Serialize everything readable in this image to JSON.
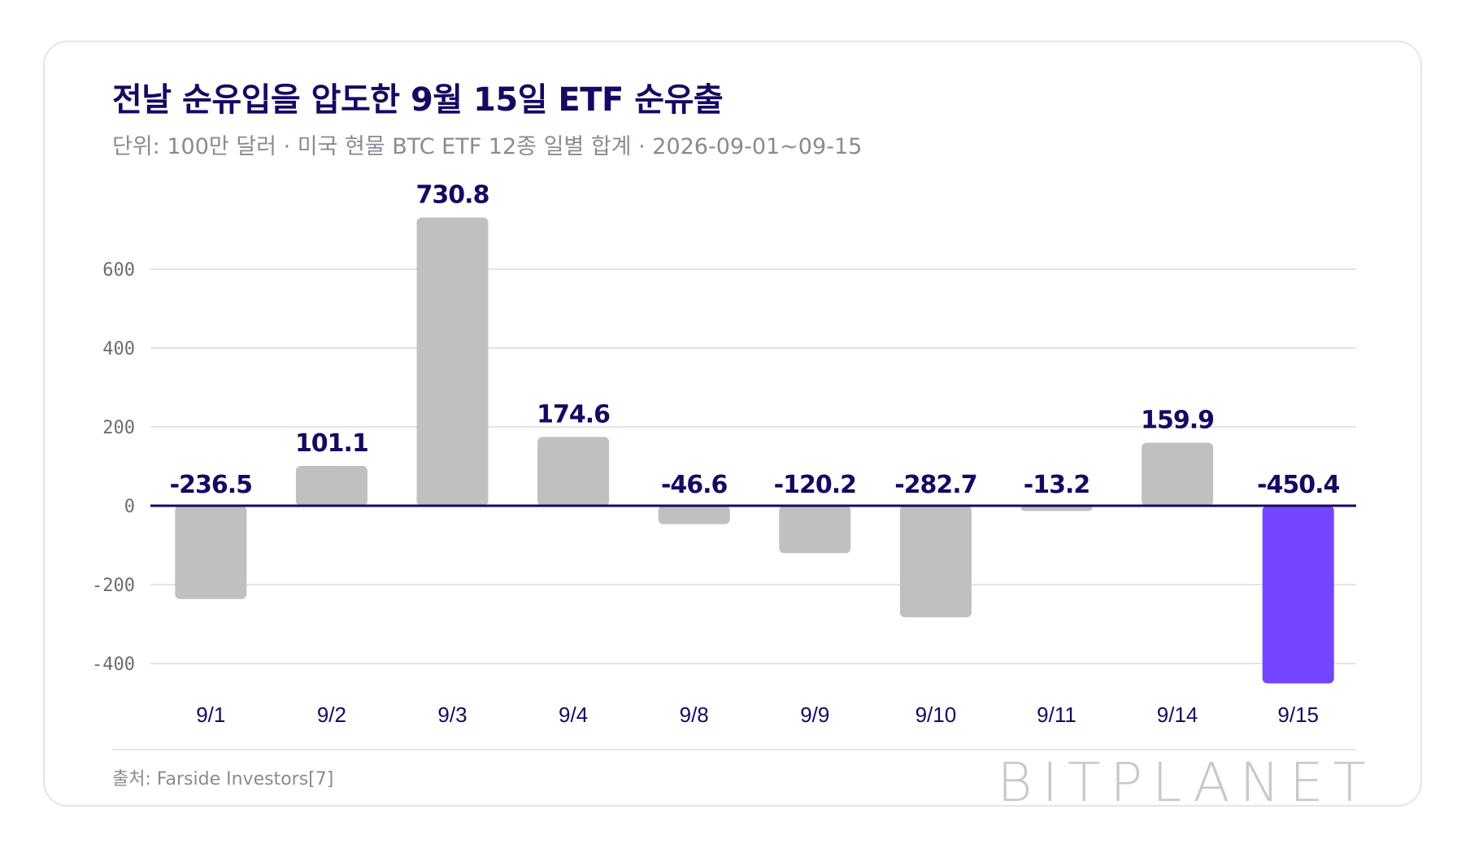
{
  "title": "전날 순유입을 압도한 9월 15일 ETF 순유출",
  "subtitle": "단위: 100만 달러 · 미국 현물 BTC ETF 12종 일별 합계 · 2026-09-01~09-15",
  "source": "출처: Farside Investors[7]",
  "brand": "BITPLANET",
  "colors": {
    "bar": "#c0c0c0",
    "highlight": "#7445ff",
    "label": "#140a63",
    "zero_line": "#140a63",
    "grid": "#e4e4e8",
    "tick": "#6b6b74"
  },
  "chart_data": {
    "type": "bar",
    "categories": [
      "9/1",
      "9/2",
      "9/3",
      "9/4",
      "9/8",
      "9/9",
      "9/10",
      "9/11",
      "9/14",
      "9/15"
    ],
    "values": [
      -236.5,
      101.1,
      730.8,
      174.6,
      -46.6,
      -120.2,
      -282.7,
      -13.2,
      159.9,
      -450.4
    ],
    "value_labels": [
      "-236.5",
      "101.1",
      "730.8",
      "174.6",
      "-46.6",
      "-120.2",
      "-282.7",
      "-13.2",
      "159.9",
      "-450.4"
    ],
    "highlight_index": 9,
    "yticks": [
      600,
      400,
      200,
      0,
      -200,
      -400
    ],
    "ylim": [
      -450.4,
      730.8
    ],
    "grid": true,
    "legend": "none"
  }
}
